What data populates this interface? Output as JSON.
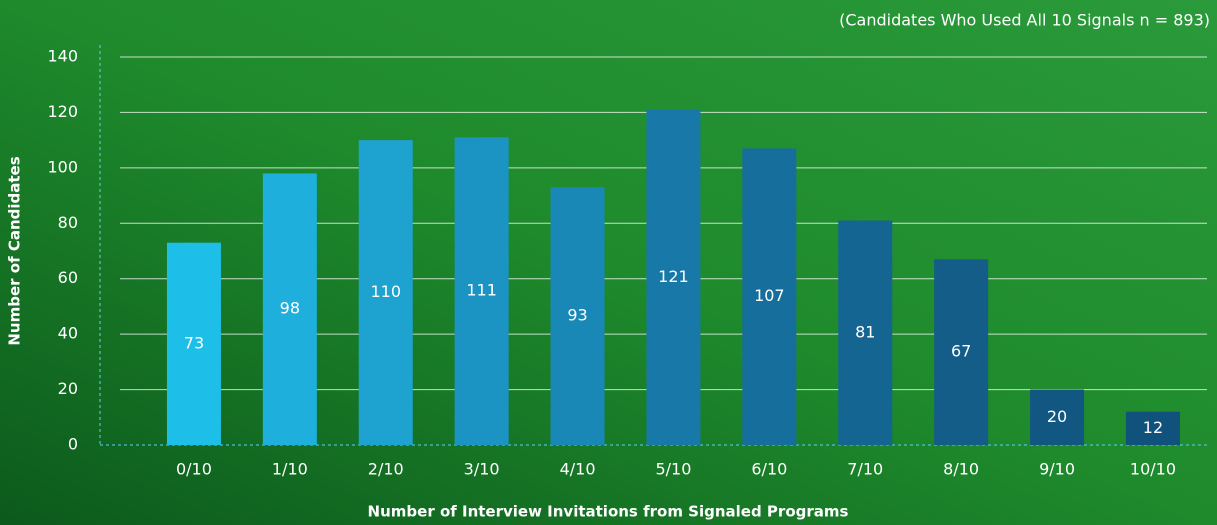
{
  "chart_data": {
    "type": "bar",
    "subtitle": "(Candidates Who Used All 10 Signals n = 893)",
    "x_label": "Number of Interview Invitations from Signaled Programs",
    "y_label": "Number of Candidates",
    "categories": [
      "0/10",
      "1/10",
      "2/10",
      "3/10",
      "4/10",
      "5/10",
      "6/10",
      "7/10",
      "8/10",
      "9/10",
      "10/10"
    ],
    "values": [
      73,
      98,
      110,
      111,
      93,
      121,
      107,
      81,
      67,
      20,
      12
    ],
    "colors": [
      "#1dbfe9",
      "#1eafdd",
      "#1ea2d0",
      "#1c94c3",
      "#1a88b7",
      "#1879a8",
      "#166e9c",
      "#146591",
      "#135d88",
      "#125782",
      "#11527d"
    ],
    "ylim": [
      0,
      140
    ],
    "yticks": [
      0,
      20,
      40,
      60,
      80,
      100,
      120,
      140
    ],
    "grid": true
  }
}
